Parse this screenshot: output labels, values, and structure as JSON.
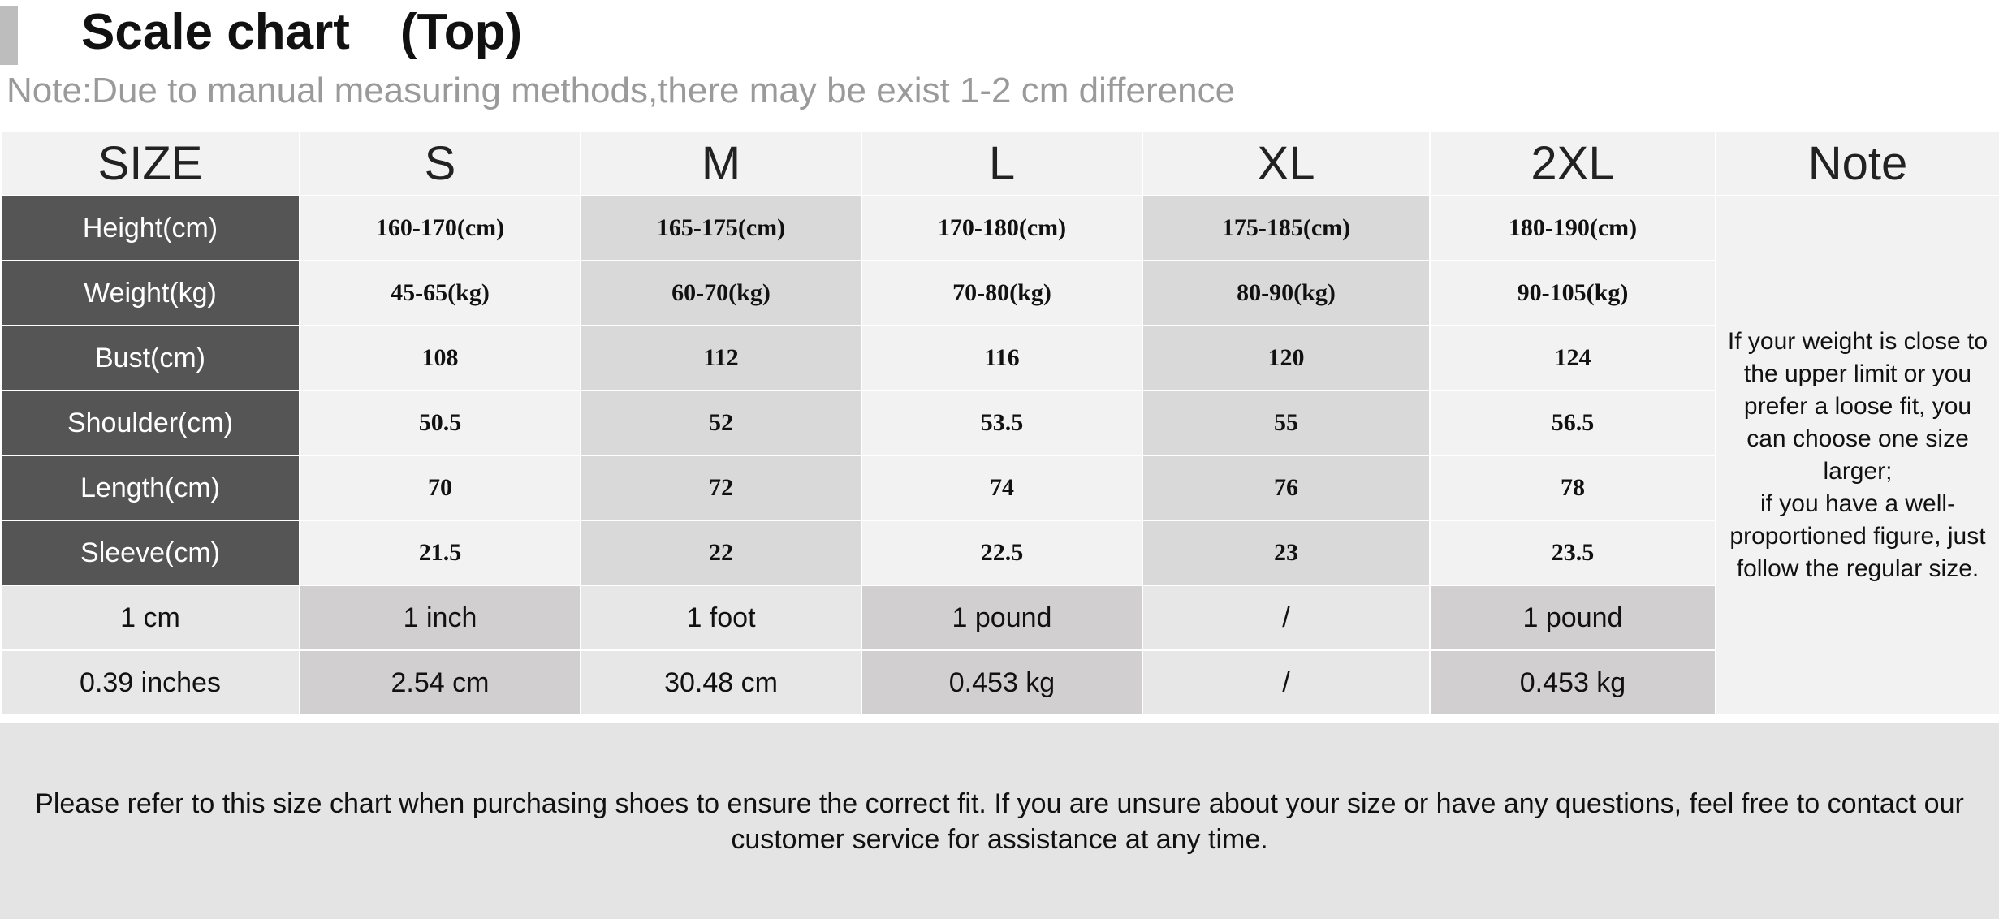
{
  "title": "Scale chart　(Top)",
  "note_line": "Note:Due to manual measuring methods,there may be exist 1-2 cm difference",
  "header": [
    "SIZE",
    "S",
    "M",
    "L",
    "XL",
    "2XL",
    "Note"
  ],
  "rows": [
    {
      "label": "Height(cm)",
      "values": [
        "160-170(cm)",
        "165-175(cm)",
        "170-180(cm)",
        "175-185(cm)",
        "180-190(cm)"
      ]
    },
    {
      "label": "Weight(kg)",
      "values": [
        "45-65(kg)",
        "60-70(kg)",
        "70-80(kg)",
        "80-90(kg)",
        "90-105(kg)"
      ]
    },
    {
      "label": "Bust(cm)",
      "values": [
        "108",
        "112",
        "116",
        "120",
        "124"
      ]
    },
    {
      "label": "Shoulder(cm)",
      "values": [
        "50.5",
        "52",
        "53.5",
        "55",
        "56.5"
      ]
    },
    {
      "label": "Length(cm)",
      "values": [
        "70",
        "72",
        "74",
        "76",
        "78"
      ]
    },
    {
      "label": "Sleeve(cm)",
      "values": [
        "21.5",
        "22",
        "22.5",
        "23",
        "23.5"
      ]
    }
  ],
  "conversion_rows": [
    [
      "1 cm",
      "1 inch",
      "1 foot",
      "1 pound",
      "/",
      "1 pound"
    ],
    [
      "0.39 inches",
      "2.54 cm",
      "30.48 cm",
      "0.453 kg",
      "/",
      "0.453 kg"
    ]
  ],
  "note_text": "If your weight is close to the upper limit or you prefer a loose fit, you can choose one size larger;\nif you have a well-proportioned figure, just follow the regular size.",
  "footer_text": "Please refer to this size chart when purchasing shoes to ensure the correct fit. If you are unsure about your size or have any questions, feel free to contact our customer service for assistance at any time."
}
